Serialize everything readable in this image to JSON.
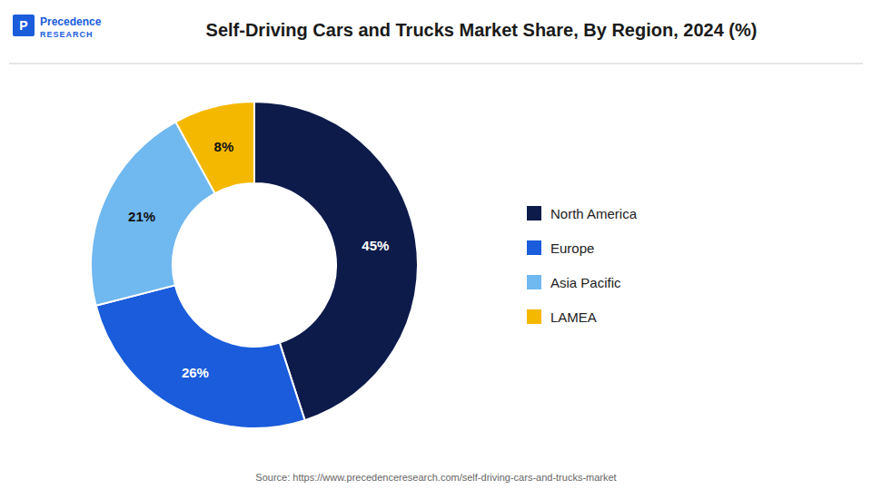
{
  "chart_data": {
    "type": "donut",
    "title": "Self-Driving Cars and Trucks Market Share, By Region, 2024 (%)",
    "categories": [
      "North America",
      "Europe",
      "Asia Pacific",
      "LAMEA"
    ],
    "values": [
      45,
      26,
      21,
      8
    ],
    "value_labels": [
      "45%",
      "26%",
      "21%",
      "8%"
    ],
    "colors": [
      "#0d1b4b",
      "#1a5cdb",
      "#70b8f0",
      "#f5b800"
    ],
    "data_labels": true,
    "legend": "right",
    "annotations": [
      "P",
      "Precedence",
      "RESEARCH",
      "Source: https://www.precedenceresearch.com/self-driving-cars-and-trucks-market"
    ]
  }
}
